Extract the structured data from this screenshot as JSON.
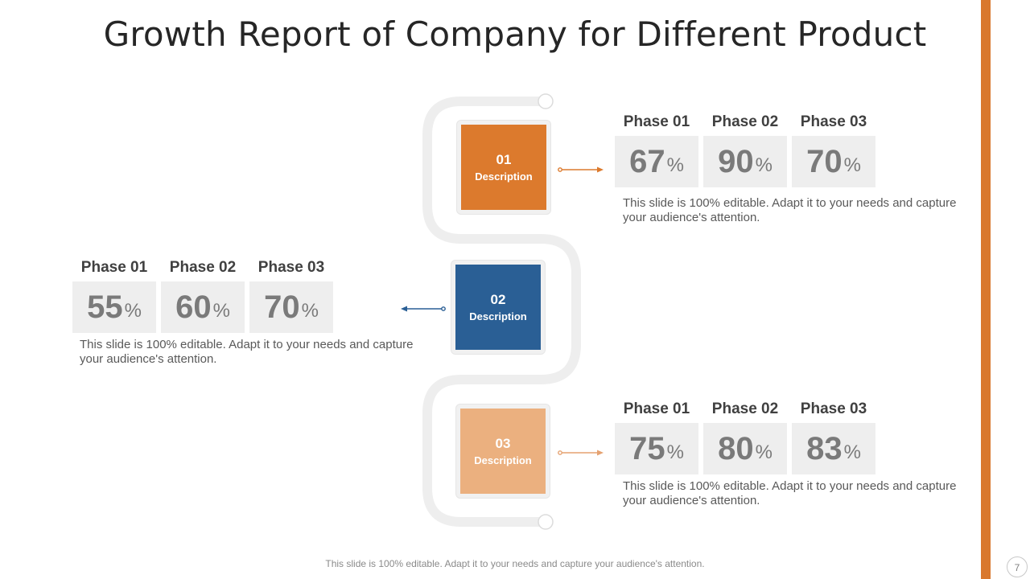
{
  "title": "Growth Report of Company for Different Product",
  "footer": "This slide is 100% editable. Adapt it to your needs and capture your audience's attention.",
  "page_number": "7",
  "colors": {
    "accent": "#d9782e",
    "blue": "#2a5f95",
    "peach": "#ebb07f",
    "orange": "#dc7a2d"
  },
  "items": [
    {
      "number": "01",
      "label": "Description",
      "color": "#dc7a2d",
      "phases": [
        {
          "label": "Phase 01",
          "value": "67",
          "unit": "%"
        },
        {
          "label": "Phase 02",
          "value": "90",
          "unit": "%"
        },
        {
          "label": "Phase 03",
          "value": "70",
          "unit": "%"
        }
      ],
      "note": "This slide is 100% editable.  Adapt it to your needs and capture your audience's attention."
    },
    {
      "number": "02",
      "label": "Description",
      "color": "#2a5f95",
      "phases": [
        {
          "label": "Phase 01",
          "value": "55",
          "unit": "%"
        },
        {
          "label": "Phase 02",
          "value": "60",
          "unit": "%"
        },
        {
          "label": "Phase 03",
          "value": "70",
          "unit": "%"
        }
      ],
      "note": "This slide is 100% editable.  Adapt it to your needs and capture your audience's attention."
    },
    {
      "number": "03",
      "label": "Description",
      "color": "#ebb07f",
      "phases": [
        {
          "label": "Phase 01",
          "value": "75",
          "unit": "%"
        },
        {
          "label": "Phase 02",
          "value": "80",
          "unit": "%"
        },
        {
          "label": "Phase 03",
          "value": "83",
          "unit": "%"
        }
      ],
      "note": "This slide is 100% editable.  Adapt it to your needs and capture your audience's attention."
    }
  ]
}
